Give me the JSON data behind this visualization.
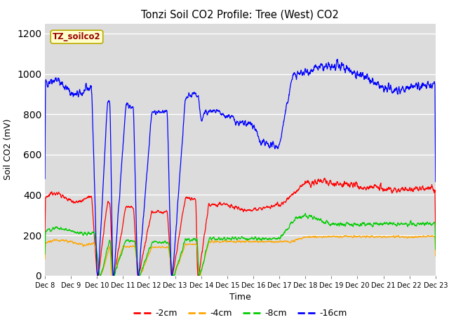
{
  "title": "Tonzi Soil CO2 Profile: Tree (West) CO2",
  "ylabel": "Soil CO2 (mV)",
  "xlabel": "Time",
  "legend_label": "TZ_soilco2",
  "series_labels": [
    "-2cm",
    "-4cm",
    "-8cm",
    "-16cm"
  ],
  "series_colors": [
    "#ff0000",
    "#ffa500",
    "#00cc00",
    "#0000ff"
  ],
  "x_tick_labels": [
    "Dec 8",
    "Dec 9",
    "Dec 10",
    "Dec 11",
    "Dec 12",
    "Dec 13",
    "Dec 14",
    "Dec 15",
    "Dec 16",
    "Dec 17",
    "Dec 18",
    "Dec 19",
    "Dec 20",
    "Dec 21",
    "Dec 22",
    "Dec 23"
  ],
  "ylim": [
    0,
    1250
  ],
  "yticks": [
    0,
    200,
    400,
    600,
    800,
    1000,
    1200
  ],
  "plot_bg_color": "#dcdcdc",
  "fig_bg_color": "#ffffff",
  "n_points": 2000,
  "noise_seed": 42
}
